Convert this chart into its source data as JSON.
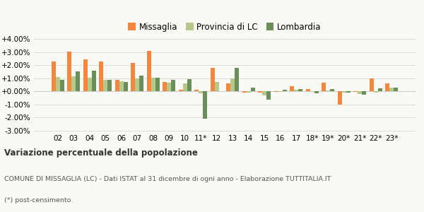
{
  "years": [
    "02",
    "03",
    "04",
    "05",
    "06",
    "07",
    "08",
    "09",
    "10",
    "11*",
    "12",
    "13",
    "14",
    "15",
    "16",
    "17",
    "18*",
    "19*",
    "20*",
    "21*",
    "22*",
    "23*"
  ],
  "missaglia": [
    2.25,
    3.02,
    2.45,
    2.28,
    0.85,
    2.18,
    3.07,
    0.72,
    0.1,
    0.13,
    1.78,
    0.62,
    -0.07,
    -0.1,
    -0.05,
    0.37,
    0.2,
    0.68,
    -1.02,
    -0.05,
    0.97,
    0.63
  ],
  "provincia": [
    1.1,
    1.13,
    1.03,
    0.9,
    0.75,
    1.01,
    1.03,
    0.68,
    0.62,
    -0.15,
    0.73,
    1.0,
    -0.07,
    -0.28,
    -0.06,
    0.15,
    -0.05,
    0.08,
    -0.08,
    -0.18,
    -0.1,
    0.3
  ],
  "lombardia": [
    0.85,
    1.5,
    1.58,
    0.88,
    0.73,
    1.18,
    1.05,
    0.9,
    0.95,
    -2.1,
    0.0,
    1.8,
    0.27,
    -0.65,
    0.1,
    0.17,
    -0.13,
    0.18,
    -0.1,
    -0.25,
    0.25,
    0.3
  ],
  "color_missaglia": "#f4873e",
  "color_provincia": "#b5c98a",
  "color_lombardia": "#6a8f5a",
  "ylim": [
    -3.0,
    4.0
  ],
  "yticks": [
    -3.0,
    -2.0,
    -1.0,
    0.0,
    1.0,
    2.0,
    3.0,
    4.0
  ],
  "legend_labels": [
    "Missaglia",
    "Provincia di LC",
    "Lombardia"
  ],
  "title_bold": "Variazione percentuale della popolazione",
  "subtitle": "COMUNE DI MISSAGLIA (LC) - Dati ISTAT al 31 dicembre di ogni anno - Elaborazione TUTTITALIA.IT",
  "footnote": "(*) post-censimento",
  "bg_color": "#f9f9f5"
}
